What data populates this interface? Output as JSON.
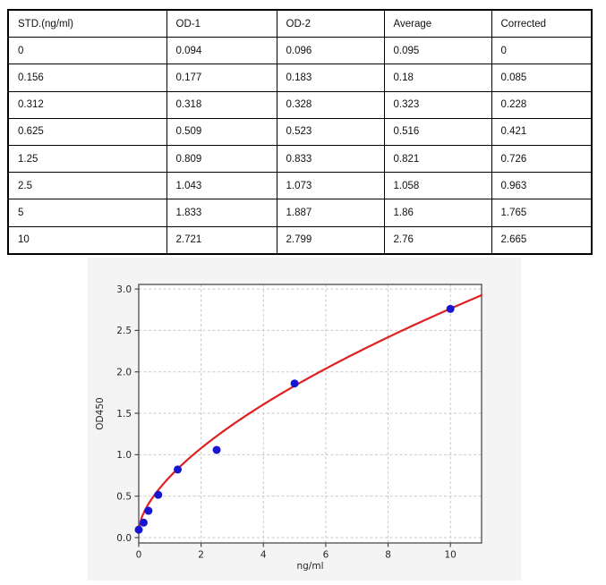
{
  "table": {
    "headers": [
      "STD.(ng/ml)",
      "OD-1",
      "OD-2",
      "Average",
      "Corrected"
    ],
    "rows": [
      [
        "0",
        "0.094",
        "0.096",
        "0.095",
        "0"
      ],
      [
        "0.156",
        "0.177",
        "0.183",
        "0.18",
        "0.085"
      ],
      [
        "0.312",
        "0.318",
        "0.328",
        "0.323",
        "0.228"
      ],
      [
        "0.625",
        "0.509",
        "0.523",
        "0.516",
        "0.421"
      ],
      [
        "1.25",
        "0.809",
        "0.833",
        "0.821",
        "0.726"
      ],
      [
        "2.5",
        "1.043",
        "1.073",
        "1.058",
        "0.963"
      ],
      [
        "5",
        "1.833",
        "1.887",
        "1.86",
        "1.765"
      ],
      [
        "10",
        "2.721",
        "2.799",
        "2.76",
        "2.665"
      ]
    ]
  },
  "chart_data": {
    "type": "scatter",
    "title": "",
    "xlabel": "ng/ml",
    "ylabel": "OD450",
    "xlim": [
      0,
      11
    ],
    "ylim": [
      -0.065,
      3.055
    ],
    "x_ticks": [
      0,
      2,
      4,
      6,
      8,
      10
    ],
    "y_ticks": [
      0.0,
      0.5,
      1.0,
      1.5,
      2.0,
      2.5,
      3.0
    ],
    "grid": "dashed",
    "legend": "none",
    "points": {
      "name": "standard-averages",
      "x": [
        0,
        0.156,
        0.312,
        0.625,
        1.25,
        2.5,
        5,
        10
      ],
      "y": [
        0.095,
        0.18,
        0.323,
        0.516,
        0.821,
        1.058,
        1.86,
        2.76
      ],
      "color": "#1616d2"
    },
    "fit_curve": {
      "name": "fitted-standard-curve",
      "color": "#e02020",
      "model": "power",
      "y0": 0.095,
      "scale": 2.83,
      "exponent": 0.62,
      "x_start": 0,
      "x_end": 11
    },
    "colors": {
      "figure_background": "#f4f4f4",
      "plot_background": "#ffffff",
      "grid": "#c9c9c9",
      "spine": "#4a4a4a",
      "tick_label": "#262626"
    }
  }
}
